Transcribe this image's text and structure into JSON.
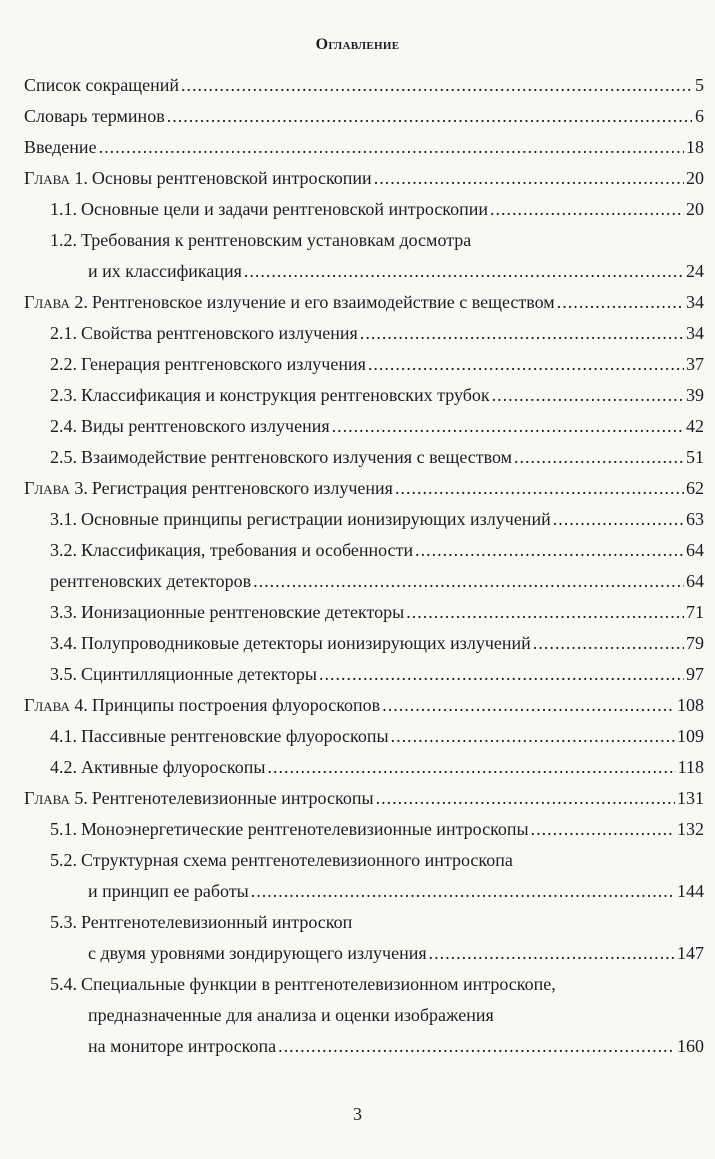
{
  "title": "Оглавление",
  "entries": [
    {
      "level": 0,
      "text": "Список сокращений",
      "page": "5"
    },
    {
      "level": 0,
      "text": "Словарь терминов",
      "page": "6"
    },
    {
      "level": 0,
      "text": "Введение",
      "page": "18"
    },
    {
      "level": 0,
      "prefix": "Глава 1.",
      "text": "Основы рентгеновской интроскопии",
      "page": "20"
    },
    {
      "level": 1,
      "num": "1.1.",
      "text": "Основные цели и задачи рентгеновской интроскопии",
      "page": "20"
    },
    {
      "level": 1,
      "num": "1.2.",
      "text": "Требования к рентгеновским установкам досмотра"
    },
    {
      "level": 2,
      "text": "и их классификация",
      "page": "24"
    },
    {
      "level": 0,
      "prefix": "Глава 2.",
      "text": "Рентгеновское излучение и его взаимодействие с веществом",
      "page": "34"
    },
    {
      "level": 1,
      "num": "2.1.",
      "text": "Свойства рентгеновского излучения",
      "page": "34"
    },
    {
      "level": 1,
      "num": "2.2.",
      "text": "Генерация рентгеновского излучения",
      "page": "37"
    },
    {
      "level": 1,
      "num": "2.3.",
      "text": "Классификация и конструкция рентгеновских трубок",
      "page": "39"
    },
    {
      "level": 1,
      "num": "2.4.",
      "text": "Виды рентгеновского излучения",
      "page": "42"
    },
    {
      "level": 1,
      "num": "2.5.",
      "text": "Взаимодействие рентгеновского излучения с веществом",
      "page": "51"
    },
    {
      "level": 0,
      "prefix": "Глава 3.",
      "text": "Регистрация рентгеновского излучения",
      "page": "62"
    },
    {
      "level": 1,
      "num": "3.1.",
      "text": "Основные принципы регистрации ионизирующих излучений",
      "page": "63"
    },
    {
      "level": 1,
      "num": "3.2.",
      "text": "Классификация, требования и особенности",
      "page": "64"
    },
    {
      "level": 1,
      "text": "рентгеновских детекторов",
      "page": "64"
    },
    {
      "level": 1,
      "num": "3.3.",
      "text": "Ионизационные рентгеновские детекторы",
      "page": "71"
    },
    {
      "level": 1,
      "num": "3.4.",
      "text": "Полупроводниковые детекторы ионизирующих излучений",
      "page": "79"
    },
    {
      "level": 1,
      "num": "3.5.",
      "text": "Сцинтилляционные детекторы",
      "page": "97"
    },
    {
      "level": 0,
      "prefix": "Глава 4.",
      "text": "Принципы построения флуороскопов",
      "page": "108"
    },
    {
      "level": 1,
      "num": "4.1.",
      "text": "Пассивные рентгеновские флуороскопы",
      "page": "109"
    },
    {
      "level": 1,
      "num": "4.2.",
      "text": "Активные флуороскопы",
      "page": "118"
    },
    {
      "level": 0,
      "prefix": "Глава 5.",
      "text": "Рентгенотелевизионные интроскопы",
      "page": "131"
    },
    {
      "level": 1,
      "num": "5.1.",
      "text": "Моноэнергетические рентгенотелевизионные интроскопы",
      "page": "132"
    },
    {
      "level": 1,
      "num": "5.2.",
      "text": "Структурная схема рентгенотелевизионного интроскопа"
    },
    {
      "level": 2,
      "text": "и принцип ее работы",
      "page": "144"
    },
    {
      "level": 1,
      "num": "5.3.",
      "text": "Рентгенотелевизионный интроскоп"
    },
    {
      "level": 2,
      "text": "с двумя уровнями зондирующего излучения",
      "page": "147"
    },
    {
      "level": 1,
      "num": "5.4.",
      "text": "Специальные функции в рентгенотелевизионном интроскопе,"
    },
    {
      "level": 2,
      "text": "предназначенные для анализа и оценки изображения"
    },
    {
      "level": 2,
      "text": "на мониторе интроскопа",
      "page": "160"
    }
  ],
  "page_number": "3"
}
